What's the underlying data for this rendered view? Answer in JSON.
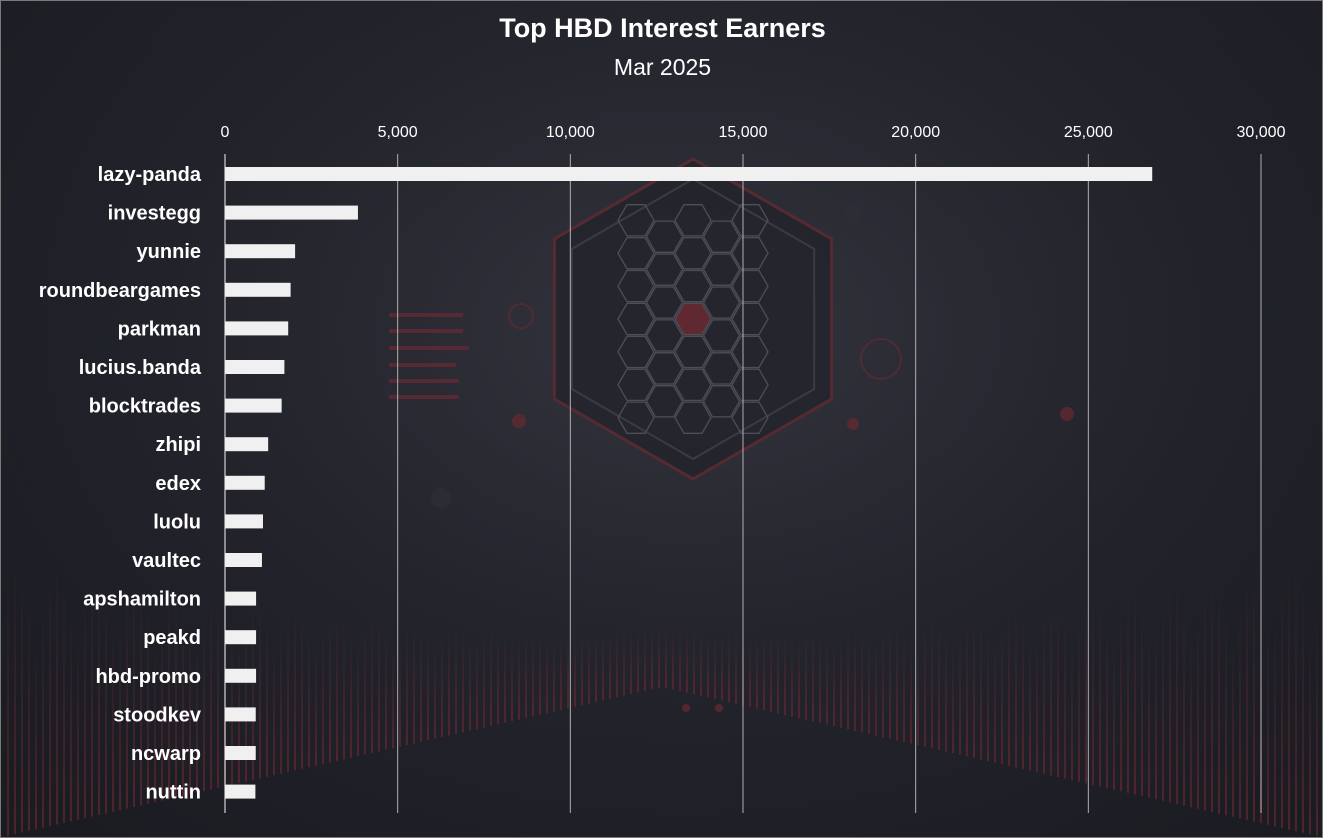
{
  "chart_data": {
    "type": "bar",
    "orientation": "horizontal",
    "title": "Top HBD Interest Earners",
    "subtitle": "Mar 2025",
    "xlim": [
      0,
      30000
    ],
    "ticks": [
      0,
      5000,
      10000,
      15000,
      20000,
      25000,
      30000
    ],
    "tick_labels": [
      "0",
      "5,000",
      "10,000",
      "15,000",
      "20,000",
      "25,000",
      "30,000"
    ],
    "axis_position": "top",
    "grid": true,
    "categories": [
      "lazy-panda",
      "investegg",
      "yunnie",
      "roundbeargames",
      "parkman",
      "lucius.banda",
      "blocktrades",
      "zhipi",
      "edex",
      "luolu",
      "vaultec",
      "apshamilton",
      "peakd",
      "hbd-promo",
      "stoodkev",
      "ncwarp",
      "nuttin"
    ],
    "values": [
      26850,
      3850,
      2030,
      1900,
      1830,
      1720,
      1640,
      1250,
      1150,
      1100,
      1070,
      900,
      900,
      900,
      890,
      890,
      880
    ],
    "colors": {
      "bar": "#f0f0f0",
      "grid": "#c8c8c8",
      "text": "#ffffff"
    }
  }
}
